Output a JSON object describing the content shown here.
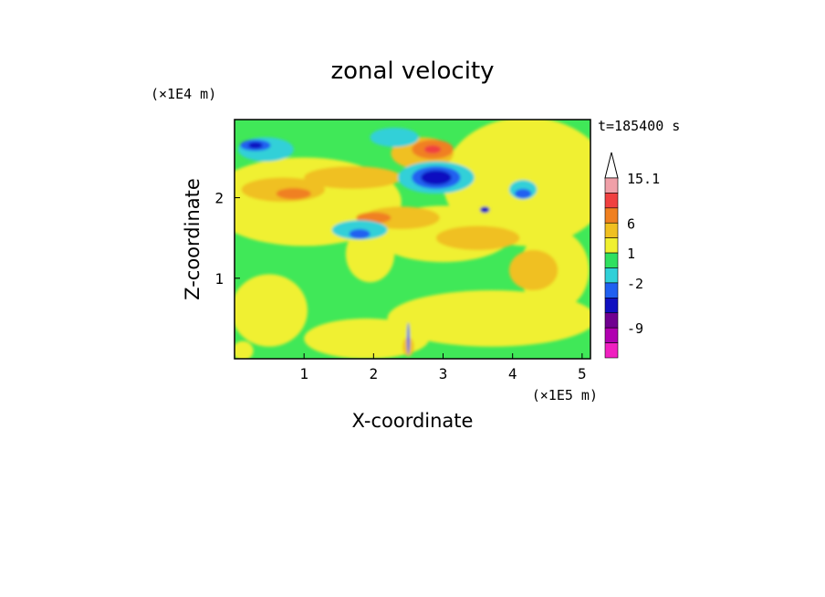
{
  "chart_data": {
    "type": "heatmap",
    "title": "zonal velocity",
    "xlabel": "X-coordinate",
    "ylabel": "Z-coordinate",
    "x_scale_label": "(×1E5 m)",
    "y_scale_label": "(×1E4 m)",
    "time_label": "t=185400 s",
    "xlim": [
      0,
      5.12
    ],
    "ylim": [
      0,
      2.97
    ],
    "x_ticks": [
      "1",
      "2",
      "3",
      "4",
      "5"
    ],
    "y_ticks": [
      "1",
      "2"
    ],
    "colorbar": {
      "labels": [
        "15.1",
        "6",
        "1",
        "-2",
        "-9"
      ],
      "levels": [
        {
          "color": "#f0a0a8"
        },
        {
          "color": "#f04040"
        },
        {
          "color": "#f08020"
        },
        {
          "color": "#f0c020"
        },
        {
          "color": "#f0f030"
        },
        {
          "color": "#30e060"
        },
        {
          "color": "#30d0d8"
        },
        {
          "color": "#2060f0"
        },
        {
          "color": "#1010c0"
        },
        {
          "color": "#700090"
        },
        {
          "color": "#b000b0"
        },
        {
          "color": "#f020c0"
        }
      ]
    },
    "background_color": "#40e858",
    "regions": [
      {
        "color": "#f0f030",
        "x": 1.0,
        "z": 1.95,
        "rx": 1.4,
        "rz": 0.55
      },
      {
        "color": "#f0f030",
        "x": 4.2,
        "z": 2.2,
        "rx": 1.2,
        "rz": 0.8
      },
      {
        "color": "#f0f030",
        "x": 0.5,
        "z": 0.6,
        "rx": 0.55,
        "rz": 0.45
      },
      {
        "color": "#f0f030",
        "x": 3.7,
        "z": 0.5,
        "rx": 1.5,
        "rz": 0.35
      },
      {
        "color": "#f0f030",
        "x": 1.9,
        "z": 0.25,
        "rx": 0.9,
        "rz": 0.25
      },
      {
        "color": "#f0f030",
        "x": 3.0,
        "z": 1.55,
        "rx": 1.0,
        "rz": 0.35
      },
      {
        "color": "#f0f030",
        "x": 1.95,
        "z": 1.3,
        "rx": 0.35,
        "rz": 0.35
      },
      {
        "color": "#f0f030",
        "x": 4.6,
        "z": 1.1,
        "rx": 0.5,
        "rz": 0.5
      },
      {
        "color": "#f0c020",
        "x": 0.7,
        "z": 2.1,
        "rx": 0.6,
        "rz": 0.15
      },
      {
        "color": "#f0c020",
        "x": 1.7,
        "z": 2.25,
        "rx": 0.7,
        "rz": 0.14
      },
      {
        "color": "#f0c020",
        "x": 2.4,
        "z": 1.75,
        "rx": 0.55,
        "rz": 0.14
      },
      {
        "color": "#f0c020",
        "x": 3.5,
        "z": 1.5,
        "rx": 0.6,
        "rz": 0.15
      },
      {
        "color": "#f0c020",
        "x": 4.3,
        "z": 1.1,
        "rx": 0.35,
        "rz": 0.25
      },
      {
        "color": "#f0c020",
        "x": 2.7,
        "z": 2.55,
        "rx": 0.45,
        "rz": 0.2
      },
      {
        "color": "#f08020",
        "x": 2.85,
        "z": 2.6,
        "rx": 0.3,
        "rz": 0.12
      },
      {
        "color": "#f08020",
        "x": 0.85,
        "z": 2.05,
        "rx": 0.25,
        "rz": 0.07
      },
      {
        "color": "#f08020",
        "x": 2.0,
        "z": 1.75,
        "rx": 0.25,
        "rz": 0.07
      },
      {
        "color": "#f04040",
        "x": 2.85,
        "z": 2.6,
        "rx": 0.12,
        "rz": 0.05
      },
      {
        "color": "#30d0d8",
        "x": 2.9,
        "z": 2.25,
        "rx": 0.55,
        "rz": 0.2
      },
      {
        "color": "#30d0d8",
        "x": 0.45,
        "z": 2.6,
        "rx": 0.4,
        "rz": 0.15
      },
      {
        "color": "#30d0d8",
        "x": 1.8,
        "z": 1.6,
        "rx": 0.4,
        "rz": 0.12
      },
      {
        "color": "#30d0d8",
        "x": 4.15,
        "z": 2.1,
        "rx": 0.2,
        "rz": 0.12
      },
      {
        "color": "#30d0d8",
        "x": 2.3,
        "z": 2.75,
        "rx": 0.35,
        "rz": 0.12
      },
      {
        "color": "#2060f0",
        "x": 2.9,
        "z": 2.25,
        "rx": 0.35,
        "rz": 0.14
      },
      {
        "color": "#2060f0",
        "x": 0.3,
        "z": 2.65,
        "rx": 0.22,
        "rz": 0.07
      },
      {
        "color": "#2060f0",
        "x": 1.8,
        "z": 1.55,
        "rx": 0.15,
        "rz": 0.06
      },
      {
        "color": "#2060f0",
        "x": 4.15,
        "z": 2.05,
        "rx": 0.12,
        "rz": 0.06
      },
      {
        "color": "#1010c0",
        "x": 2.9,
        "z": 2.25,
        "rx": 0.22,
        "rz": 0.09
      },
      {
        "color": "#1010c0",
        "x": 0.3,
        "z": 2.65,
        "rx": 0.1,
        "rz": 0.04
      },
      {
        "color": "#1010c0",
        "x": 3.6,
        "z": 1.85,
        "rx": 0.07,
        "rz": 0.04
      },
      {
        "color": "#f0f030",
        "x": 0.12,
        "z": 0.1,
        "rx": 0.15,
        "rz": 0.12
      },
      {
        "color": "#f0c020",
        "x": 2.5,
        "z": 0.15,
        "rx": 0.08,
        "rz": 0.12
      },
      {
        "color": "#2060f0",
        "x": 2.5,
        "z": 0.25,
        "rx": 0.02,
        "rz": 0.2
      }
    ]
  }
}
